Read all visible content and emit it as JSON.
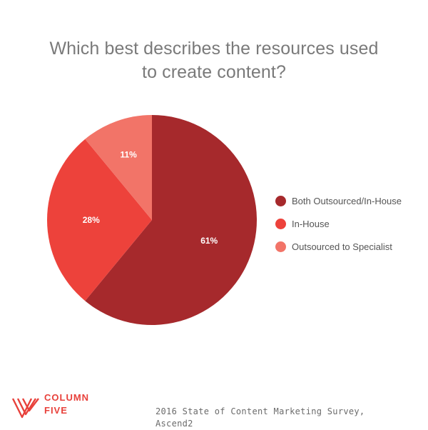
{
  "header": {
    "title_line1": "Which best describes the resources used",
    "title_line2": "to create content?"
  },
  "chart_data": {
    "type": "pie",
    "title": "Which best describes the resources used to create content?",
    "categories": [
      "Both Outsourced/In-House",
      "In-House",
      "Outsourced to Specialist"
    ],
    "values": [
      61,
      28,
      11
    ],
    "labels": [
      "61%",
      "28%",
      "11%"
    ],
    "colors": [
      "#a6292c",
      "#ed423b",
      "#f27468"
    ],
    "legend_placement": "right"
  },
  "legend": {
    "items": [
      {
        "label": "Both Outsourced/In-House",
        "color": "#a6292c"
      },
      {
        "label": "In-House",
        "color": "#ed423b"
      },
      {
        "label": "Outsourced to Specialist",
        "color": "#f27468"
      }
    ]
  },
  "footer": {
    "brand_line1": "COLUMN",
    "brand_line2": "FIVE",
    "brand_color": "#e8413b",
    "source_line1": "2016 State of Content Marketing Survey,",
    "source_line2": "Ascend2"
  }
}
